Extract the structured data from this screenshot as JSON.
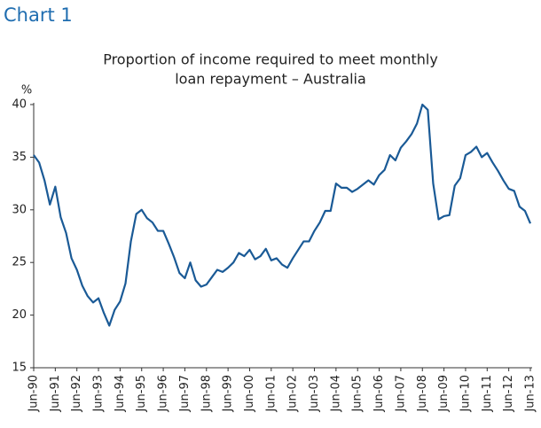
{
  "chart_data": {
    "type": "line",
    "header": "Chart 1",
    "title": [
      "Proportion of income required to meet monthly",
      "loan repayment – Australia"
    ],
    "y_unit": "%",
    "categories": [
      "Jun-90",
      null,
      null,
      null,
      "Jun-91",
      null,
      null,
      null,
      "Jun-92",
      null,
      null,
      null,
      "Jun-93",
      null,
      null,
      null,
      "Jun-94",
      null,
      null,
      null,
      "Jun-95",
      null,
      null,
      null,
      "Jun-96",
      null,
      null,
      null,
      "Jun-97",
      null,
      null,
      null,
      "Jun-98",
      null,
      null,
      null,
      "Jun-99",
      null,
      null,
      null,
      "Jun-00",
      null,
      null,
      null,
      "Jun-01",
      null,
      null,
      null,
      "Jun-02",
      null,
      null,
      null,
      "Jun-03",
      null,
      null,
      null,
      "Jun-04",
      null,
      null,
      null,
      "Jun-05",
      null,
      null,
      null,
      "Jun-06",
      null,
      null,
      null,
      "Jun-07",
      null,
      null,
      null,
      "Jun-08",
      null,
      null,
      null,
      "Jun-09",
      null,
      null,
      null,
      "Jun-10",
      null,
      null,
      null,
      "Jun-11",
      null,
      null,
      null,
      "Jun-12",
      null,
      null,
      null,
      "Jun-13"
    ],
    "series": [
      {
        "color": "#1a5a96",
        "values": [
          35.2,
          34.5,
          32.8,
          30.5,
          32.2,
          29.3,
          27.8,
          25.4,
          24.3,
          22.8,
          21.8,
          21.2,
          21.6,
          20.2,
          19.0,
          20.5,
          21.3,
          23.0,
          27.0,
          29.6,
          30.0,
          29.2,
          28.8,
          28.0,
          28.0,
          26.8,
          25.5,
          24.0,
          23.5,
          25.0,
          23.3,
          22.7,
          22.9,
          23.6,
          24.3,
          24.1,
          24.5,
          25.0,
          25.9,
          25.6,
          26.2,
          25.3,
          25.6,
          26.3,
          25.2,
          25.4,
          24.8,
          24.5,
          25.4,
          26.2,
          27.0,
          27.0,
          28.0,
          28.8,
          29.9,
          29.9,
          32.5,
          32.1,
          32.1,
          31.7,
          32.0,
          32.4,
          32.8,
          32.4,
          33.3,
          33.8,
          35.2,
          34.7,
          35.9,
          36.5,
          37.2,
          38.2,
          40.0,
          39.5,
          32.5,
          29.1,
          29.4,
          29.5,
          32.3,
          33.0,
          35.2,
          35.5,
          36.0,
          35.0,
          35.4,
          34.5,
          33.7,
          32.8,
          32.0,
          31.8,
          30.3,
          29.9,
          28.7
        ]
      }
    ],
    "ylim": [
      15,
      40
    ],
    "yticks": [
      15,
      20,
      25,
      30,
      35,
      40
    ],
    "grid": false
  }
}
